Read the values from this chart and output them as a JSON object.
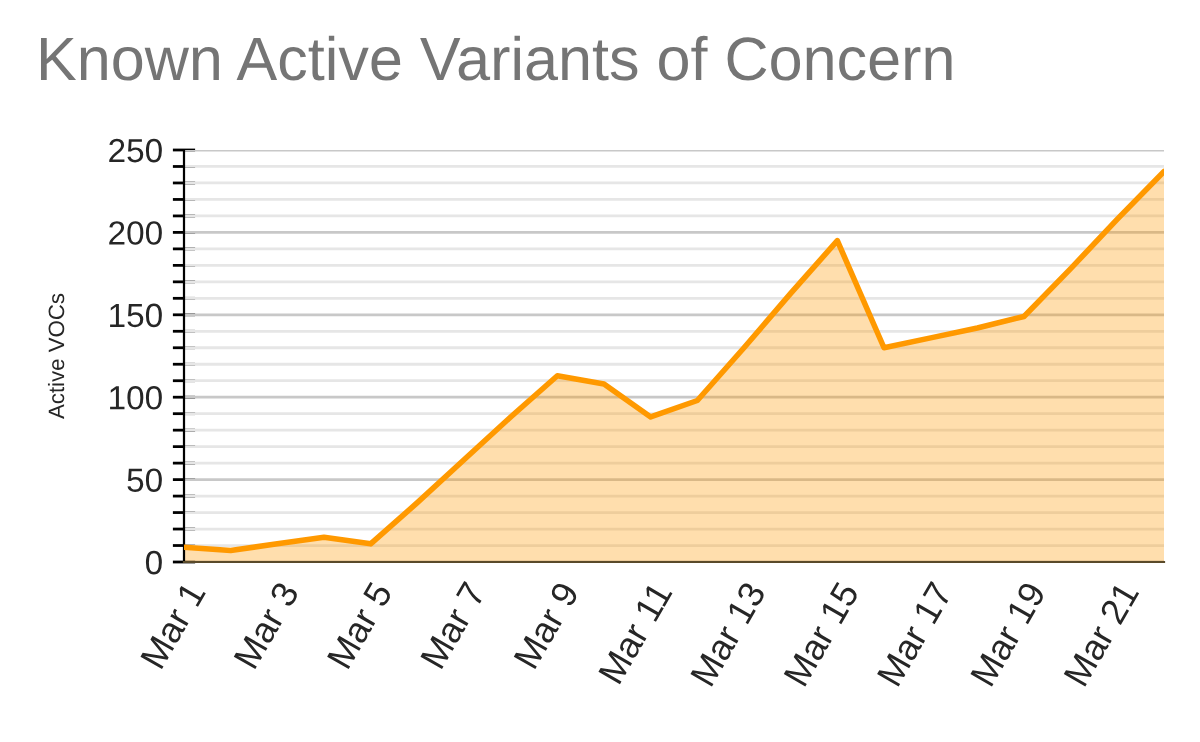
{
  "chart_data": {
    "type": "area",
    "title": "Known Active Variants of Concern",
    "ylabel": "Active VOCs",
    "categories": [
      "Mar 1",
      null,
      "Mar 3",
      null,
      "Mar 5",
      null,
      "Mar 7",
      null,
      "Mar 9",
      null,
      "Mar 11",
      null,
      "Mar 13",
      null,
      "Mar 15",
      null,
      "Mar 17",
      null,
      "Mar 19",
      null,
      "Mar 21",
      null
    ],
    "series": [
      {
        "color": "#ff9900",
        "values": [
          9,
          7,
          11,
          15,
          11,
          36,
          62,
          88,
          113,
          108,
          88,
          98,
          130,
          163,
          195,
          130,
          136,
          142,
          149,
          178,
          208,
          237
        ]
      }
    ],
    "ylim": [
      0,
      250
    ],
    "yticks": [
      0,
      {
        "value": 10,
        "label": null
      },
      {
        "value": 20,
        "label": null
      },
      {
        "value": 30,
        "label": null
      },
      {
        "value": 40,
        "label": null
      },
      50,
      {
        "value": 60,
        "label": null
      },
      {
        "value": 70,
        "label": null
      },
      {
        "value": 80,
        "label": null
      },
      {
        "value": 90,
        "label": null
      },
      100,
      {
        "value": 110,
        "label": null
      },
      {
        "value": 120,
        "label": null
      },
      {
        "value": 130,
        "label": null
      },
      {
        "value": 140,
        "label": null
      },
      150,
      {
        "value": 160,
        "label": null
      },
      {
        "value": 170,
        "label": null
      },
      {
        "value": 180,
        "label": null
      },
      {
        "value": 190,
        "label": null
      },
      200,
      {
        "value": 210,
        "label": null
      },
      {
        "value": 220,
        "label": null
      },
      {
        "value": 230,
        "label": null
      },
      {
        "value": 240,
        "label": null
      },
      250
    ],
    "grid": "y",
    "line_style": "solid"
  }
}
